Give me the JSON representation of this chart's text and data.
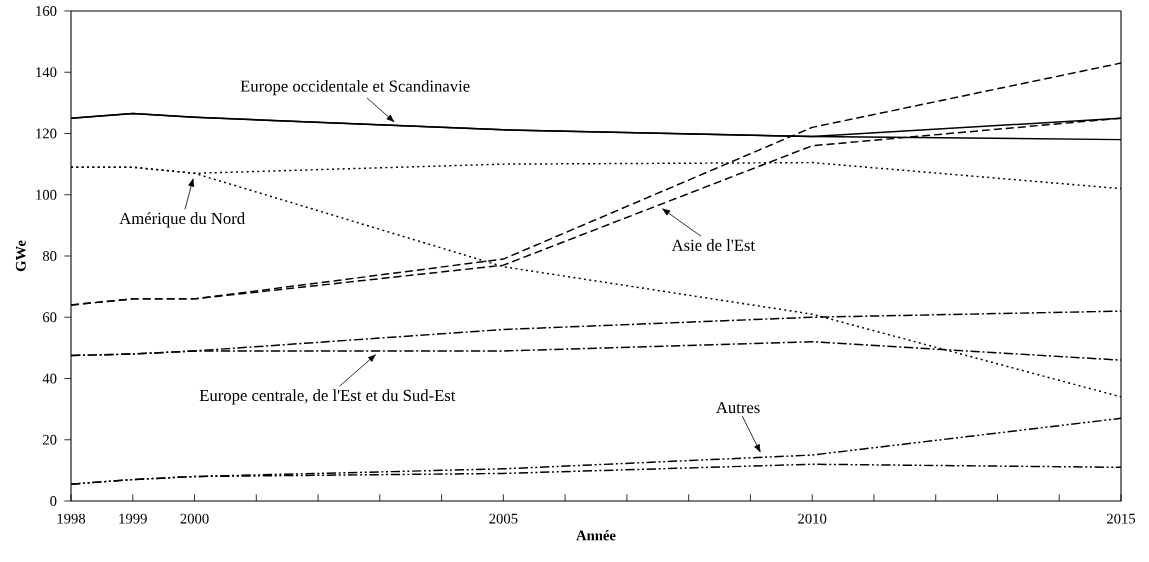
{
  "chart_data": {
    "type": "line",
    "xlabel": "Année",
    "ylabel": "GWe",
    "x": [
      1998,
      1999,
      2000,
      2005,
      2010,
      2015
    ],
    "series": [
      {
        "color": "#000000",
        "line_style": "solid",
        "values": [
          125,
          126.5,
          125.3,
          121.2,
          119,
          125
        ]
      },
      {
        "color": "#000000",
        "line_style": "solid",
        "values": [
          125,
          126.5,
          125.3,
          121.2,
          119,
          118
        ]
      },
      {
        "color": "#000000",
        "line_style": "dotted",
        "values": [
          109,
          109,
          107,
          110,
          110.5,
          102
        ]
      },
      {
        "color": "#000000",
        "line_style": "dotted",
        "values": [
          109,
          109,
          107,
          76.5,
          61,
          34
        ]
      },
      {
        "color": "#000000",
        "line_style": "dashed",
        "values": [
          64,
          66,
          66,
          79,
          122,
          143
        ]
      },
      {
        "color": "#000000",
        "line_style": "dashed",
        "values": [
          64,
          66,
          66,
          77,
          116,
          125
        ]
      },
      {
        "color": "#000000",
        "line_style": "dashdot",
        "values": [
          47.5,
          48,
          49,
          56,
          60,
          62
        ]
      },
      {
        "color": "#000000",
        "line_style": "dashdot",
        "values": [
          47.5,
          48,
          49,
          49,
          52,
          46
        ]
      },
      {
        "color": "#000000",
        "line_style": "dashdotdot",
        "values": [
          5.5,
          7,
          8,
          10.5,
          15,
          27
        ]
      },
      {
        "color": "#000000",
        "line_style": "dashdotdot",
        "values": [
          5.5,
          7,
          8,
          9,
          12,
          11
        ]
      }
    ],
    "xlim": [
      1998,
      2015
    ],
    "xticks": [
      1998,
      1999,
      2000,
      {
        "value": 2001,
        "label": null
      },
      {
        "value": 2002,
        "label": null
      },
      {
        "value": 2003,
        "label": null
      },
      {
        "value": 2004,
        "label": null
      },
      2005,
      {
        "value": 2006,
        "label": null
      },
      {
        "value": 2007,
        "label": null
      },
      {
        "value": 2008,
        "label": null
      },
      {
        "value": 2009,
        "label": null
      },
      2010,
      {
        "value": 2011,
        "label": null
      },
      {
        "value": 2012,
        "label": null
      },
      {
        "value": 2013,
        "label": null
      },
      {
        "value": 2014,
        "label": null
      },
      2015
    ],
    "ylim": [
      0,
      160
    ],
    "yticks": [
      0,
      20,
      40,
      60,
      80,
      100,
      120,
      140,
      160
    ],
    "annotations": [
      {
        "text": "Europe occidentale et Scandinavie",
        "x": 2003.3,
        "y": 122.6
      },
      {
        "text": "Amérique du Nord",
        "x": 2000,
        "y": 107
      },
      {
        "text": "Asie de l'Est",
        "x": 2007.5,
        "y": 96.5
      },
      {
        "text": "Europe centrale, de l'Est et du Sud-Est",
        "x": 2003,
        "y": 49
      },
      {
        "text": "Autres",
        "x": 2009.2,
        "y": 14.3
      }
    ]
  }
}
